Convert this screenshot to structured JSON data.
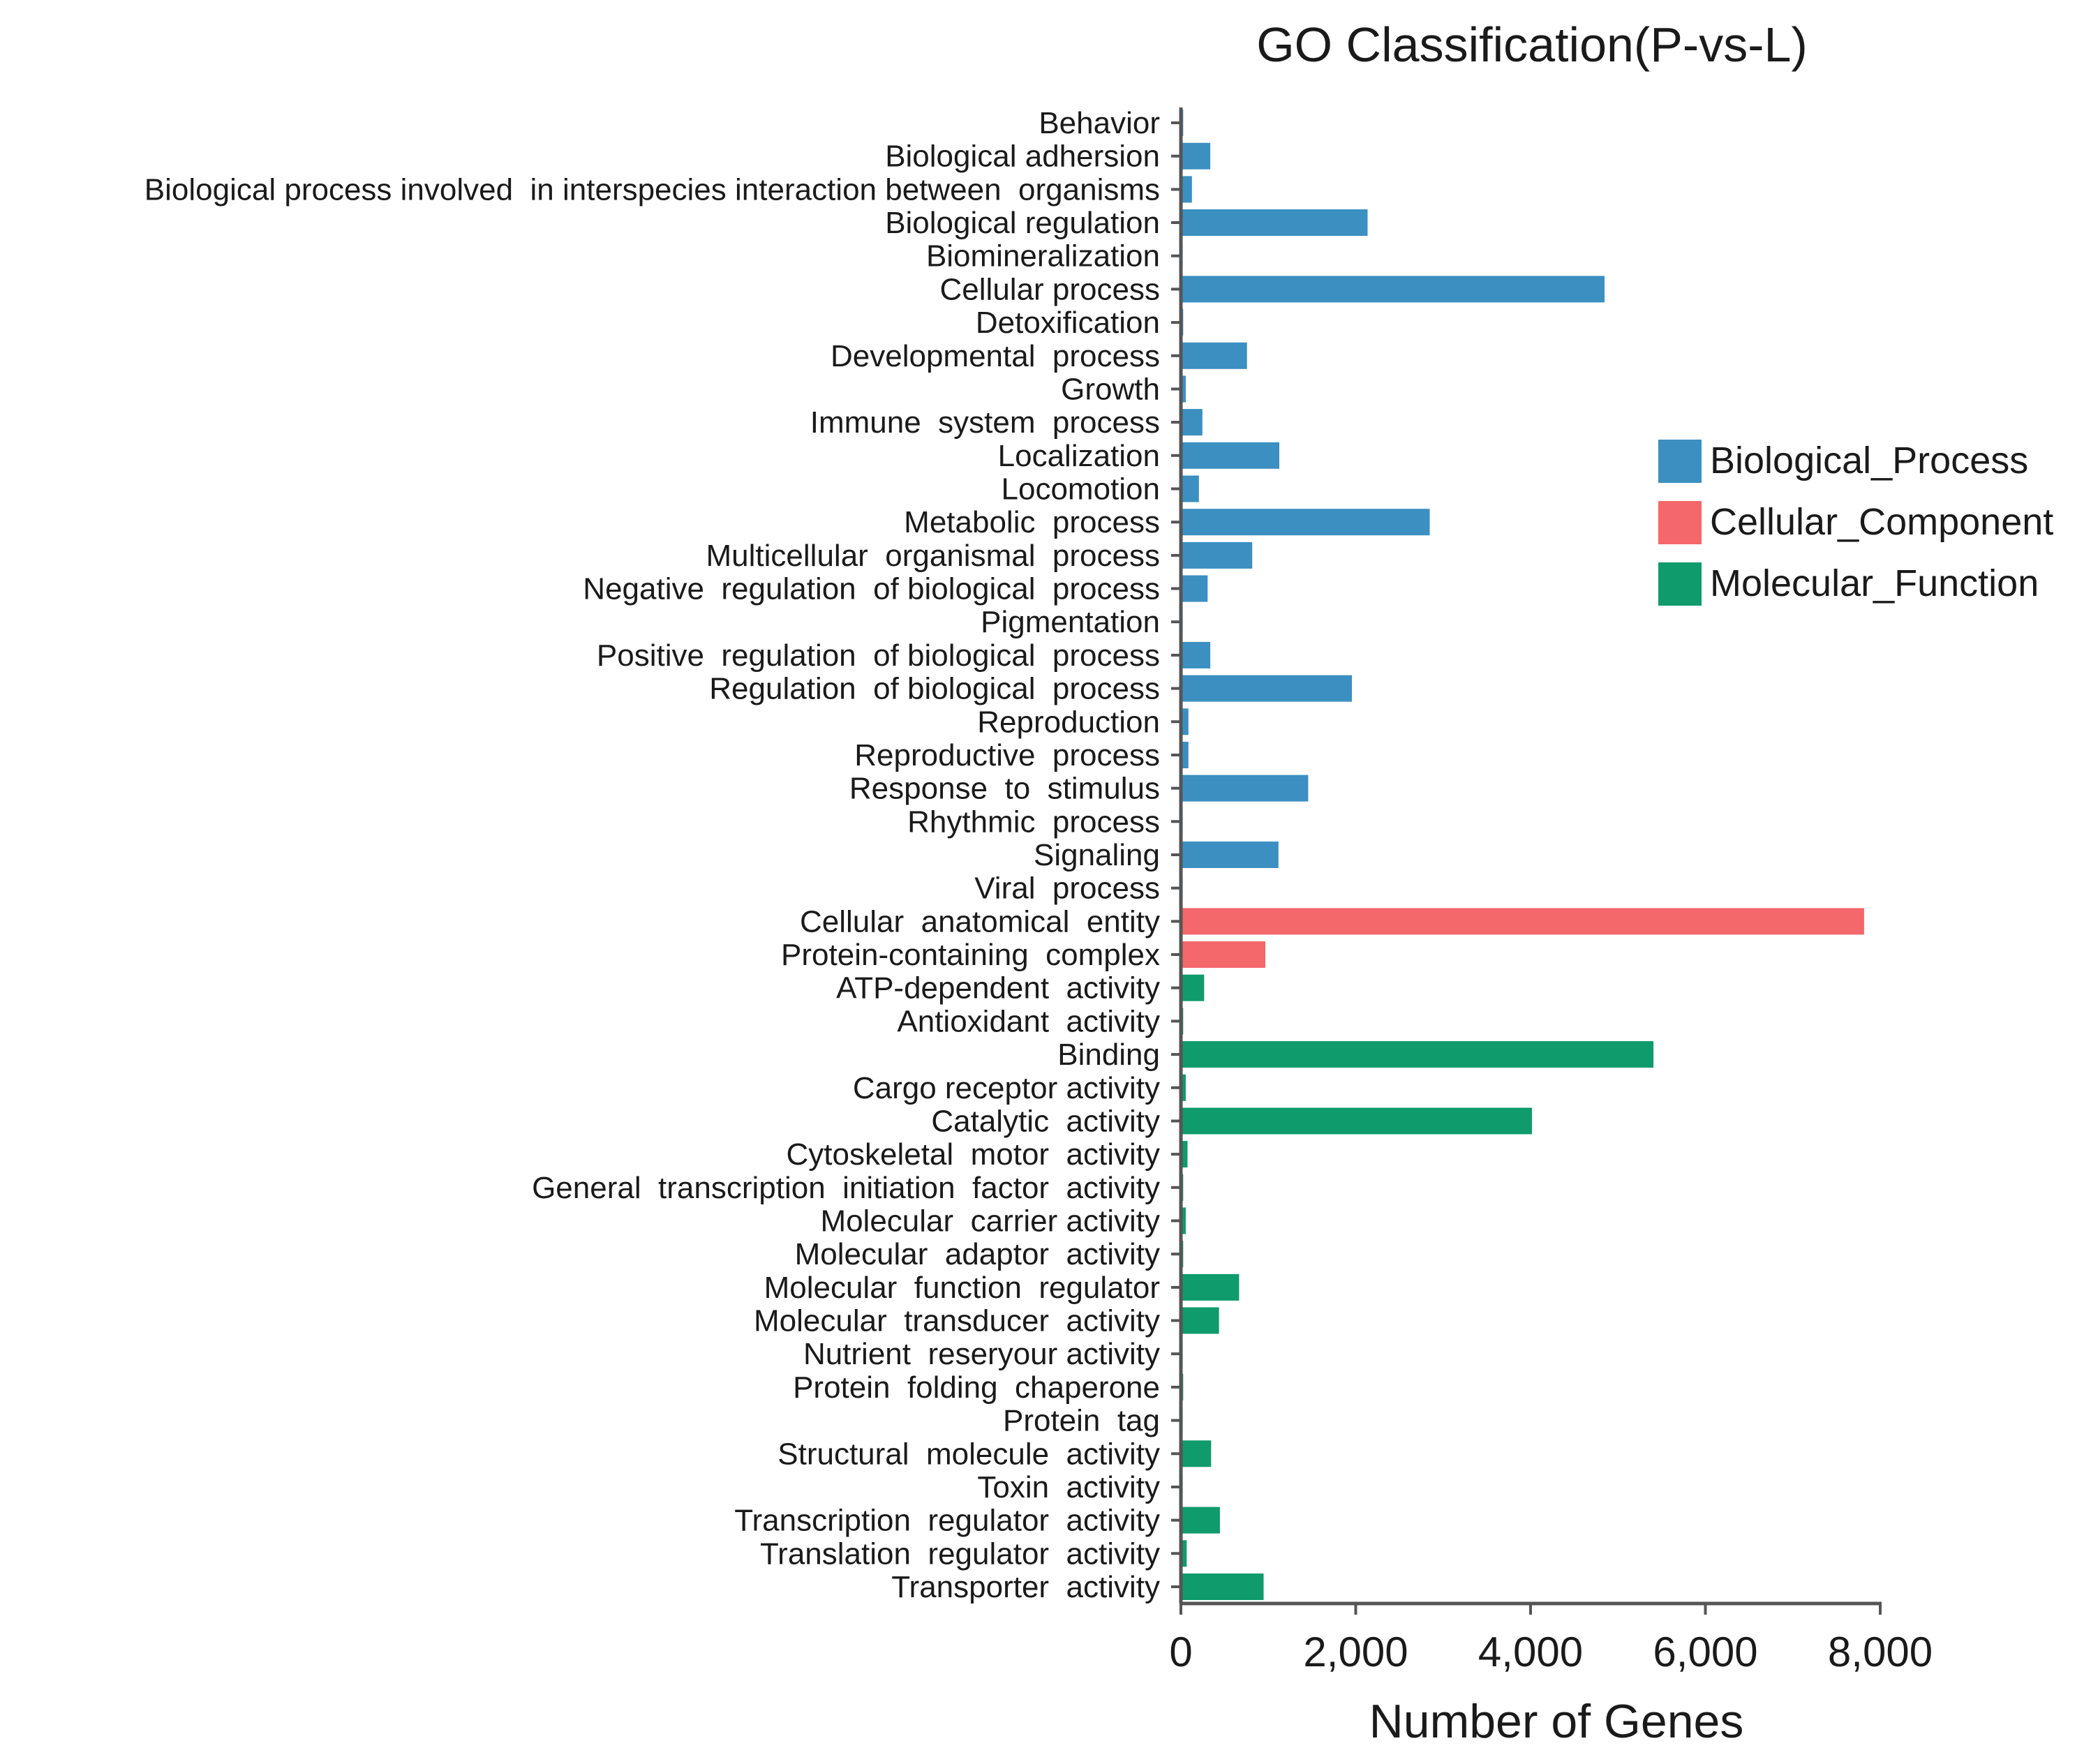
{
  "chart_data": {
    "type": "bar",
    "orientation": "horizontal",
    "title": "GO Classification(P-vs-L)",
    "xlabel": "Number of Genes",
    "ylabel": "",
    "xlim": [
      0,
      8000
    ],
    "xticks": [
      0,
      2000,
      4000,
      6000,
      8000
    ],
    "xtick_labels": [
      "0",
      "2,000",
      "4,000",
      "6,000",
      "8,000"
    ],
    "grid": false,
    "legend_position": "right",
    "series": [
      {
        "name": "Biological_Process",
        "color": "#3b8fc1"
      },
      {
        "name": "Cellular_Component",
        "color": "#f4676a"
      },
      {
        "name": "Molecular_Function",
        "color": "#0f9b6c"
      }
    ],
    "bars": [
      {
        "label": "Behavior",
        "value": 10,
        "series": "Biological_Process"
      },
      {
        "label": "Biological adhersion",
        "value": 320,
        "series": "Biological_Process"
      },
      {
        "label": "Biological process involved  in interspecies interaction between  organisms",
        "value": 110,
        "series": "Biological_Process"
      },
      {
        "label": "Biological regulation",
        "value": 2120,
        "series": "Biological_Process"
      },
      {
        "label": "Biomineralization",
        "value": 5,
        "series": "Biological_Process"
      },
      {
        "label": "Cellular process",
        "value": 4830,
        "series": "Biological_Process"
      },
      {
        "label": "Detoxification",
        "value": 10,
        "series": "Biological_Process"
      },
      {
        "label": "Developmental  process",
        "value": 740,
        "series": "Biological_Process"
      },
      {
        "label": "Growth",
        "value": 40,
        "series": "Biological_Process"
      },
      {
        "label": "Immune  system  process",
        "value": 230,
        "series": "Biological_Process"
      },
      {
        "label": "Localization",
        "value": 1110,
        "series": "Biological_Process"
      },
      {
        "label": "Locomotion",
        "value": 190,
        "series": "Biological_Process"
      },
      {
        "label": "Metabolic  process",
        "value": 2830,
        "series": "Biological_Process"
      },
      {
        "label": "Multicellular  organismal  process",
        "value": 800,
        "series": "Biological_Process"
      },
      {
        "label": "Negative  regulation  of biological  process",
        "value": 290,
        "series": "Biological_Process"
      },
      {
        "label": "Pigmentation",
        "value": 5,
        "series": "Biological_Process"
      },
      {
        "label": "Positive  regulation  of biological  process",
        "value": 320,
        "series": "Biological_Process"
      },
      {
        "label": "Regulation  of biological  process",
        "value": 1940,
        "series": "Biological_Process"
      },
      {
        "label": "Reproduction",
        "value": 70,
        "series": "Biological_Process"
      },
      {
        "label": "Reproductive  process",
        "value": 70,
        "series": "Biological_Process"
      },
      {
        "label": "Response  to  stimulus",
        "value": 1440,
        "series": "Biological_Process"
      },
      {
        "label": "Rhythmic  process",
        "value": 5,
        "series": "Biological_Process"
      },
      {
        "label": "Signaling",
        "value": 1100,
        "series": "Biological_Process"
      },
      {
        "label": "Viral  process",
        "value": 5,
        "series": "Biological_Process"
      },
      {
        "label": "Cellular  anatomical  entity",
        "value": 7800,
        "series": "Cellular_Component"
      },
      {
        "label": "Protein-containing  complex",
        "value": 950,
        "series": "Cellular_Component"
      },
      {
        "label": "ATP-dependent  activity",
        "value": 250,
        "series": "Molecular_Function"
      },
      {
        "label": "Antioxidant  activity",
        "value": 10,
        "series": "Molecular_Function"
      },
      {
        "label": "Binding",
        "value": 5390,
        "series": "Molecular_Function"
      },
      {
        "label": "Cargo receptor activity",
        "value": 40,
        "series": "Molecular_Function"
      },
      {
        "label": "Catalytic  activity",
        "value": 4000,
        "series": "Molecular_Function"
      },
      {
        "label": "Cytoskeletal  motor  activity",
        "value": 60,
        "series": "Molecular_Function"
      },
      {
        "label": "General  transcription  initiation  factor  activity",
        "value": 10,
        "series": "Molecular_Function"
      },
      {
        "label": "Molecular  carrier activity",
        "value": 40,
        "series": "Molecular_Function"
      },
      {
        "label": "Molecular  adaptor  activity",
        "value": 10,
        "series": "Molecular_Function"
      },
      {
        "label": "Molecular  function  regulator",
        "value": 650,
        "series": "Molecular_Function"
      },
      {
        "label": "Molecular  transducer  activity",
        "value": 420,
        "series": "Molecular_Function"
      },
      {
        "label": "Nutrient  reseryour activity",
        "value": 5,
        "series": "Molecular_Function"
      },
      {
        "label": "Protein  folding  chaperone",
        "value": 10,
        "series": "Molecular_Function"
      },
      {
        "label": "Protein  tag",
        "value": 5,
        "series": "Molecular_Function"
      },
      {
        "label": "Structural  molecule  activity",
        "value": 330,
        "series": "Molecular_Function"
      },
      {
        "label": "Toxin  activity",
        "value": 5,
        "series": "Molecular_Function"
      },
      {
        "label": "Transcription  regulator  activity",
        "value": 430,
        "series": "Molecular_Function"
      },
      {
        "label": "Translation  regulator  activity",
        "value": 50,
        "series": "Molecular_Function"
      },
      {
        "label": "Transporter  activity",
        "value": 930,
        "series": "Molecular_Function"
      }
    ]
  }
}
